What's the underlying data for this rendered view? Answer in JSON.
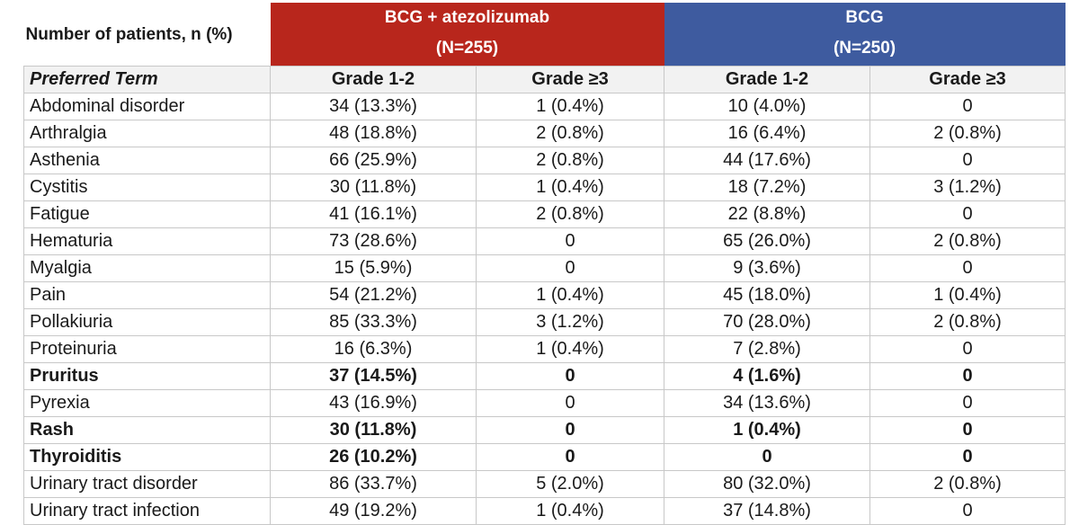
{
  "header": {
    "title": "Number of patients, n (%)",
    "arm1": {
      "name": "BCG + atezolizumab",
      "n": "(N=255)",
      "color": "#b8261c"
    },
    "arm2": {
      "name": "BCG",
      "n": "(N=250)",
      "color": "#3e5b9f"
    }
  },
  "columns": {
    "term": "Preferred Term",
    "g12_a": "Grade 1-2",
    "g3_a": "Grade ≥3",
    "g12_b": "Grade 1-2",
    "g3_b": "Grade ≥3"
  },
  "rows": [
    {
      "term": "Abdominal disorder",
      "a12": "34 (13.3%)",
      "a3": "1 (0.4%)",
      "b12": "10 (4.0%)",
      "b3": "0",
      "bold": false
    },
    {
      "term": "Arthralgia",
      "a12": "48 (18.8%)",
      "a3": "2 (0.8%)",
      "b12": "16 (6.4%)",
      "b3": "2 (0.8%)",
      "bold": false
    },
    {
      "term": "Asthenia",
      "a12": "66 (25.9%)",
      "a3": "2 (0.8%)",
      "b12": "44 (17.6%)",
      "b3": "0",
      "bold": false
    },
    {
      "term": "Cystitis",
      "a12": "30 (11.8%)",
      "a3": "1 (0.4%)",
      "b12": "18 (7.2%)",
      "b3": "3 (1.2%)",
      "bold": false
    },
    {
      "term": "Fatigue",
      "a12": "41 (16.1%)",
      "a3": "2 (0.8%)",
      "b12": "22 (8.8%)",
      "b3": "0",
      "bold": false
    },
    {
      "term": "Hematuria",
      "a12": "73 (28.6%)",
      "a3": "0",
      "b12": "65 (26.0%)",
      "b3": "2 (0.8%)",
      "bold": false
    },
    {
      "term": "Myalgia",
      "a12": "15 (5.9%)",
      "a3": "0",
      "b12": "9 (3.6%)",
      "b3": "0",
      "bold": false
    },
    {
      "term": "Pain",
      "a12": "54 (21.2%)",
      "a3": "1 (0.4%)",
      "b12": "45 (18.0%)",
      "b3": "1 (0.4%)",
      "bold": false
    },
    {
      "term": "Pollakiuria",
      "a12": "85 (33.3%)",
      "a3": "3 (1.2%)",
      "b12": "70 (28.0%)",
      "b3": "2 (0.8%)",
      "bold": false
    },
    {
      "term": "Proteinuria",
      "a12": "16 (6.3%)",
      "a3": "1 (0.4%)",
      "b12": "7 (2.8%)",
      "b3": "0",
      "bold": false
    },
    {
      "term": "Pruritus",
      "a12": "37 (14.5%)",
      "a3": "0",
      "b12": "4 (1.6%)",
      "b3": "0",
      "bold": true
    },
    {
      "term": "Pyrexia",
      "a12": "43 (16.9%)",
      "a3": "0",
      "b12": "34 (13.6%)",
      "b3": "0",
      "bold": false
    },
    {
      "term": "Rash",
      "a12": "30 (11.8%)",
      "a3": "0",
      "b12": "1 (0.4%)",
      "b3": "0",
      "bold": true
    },
    {
      "term": "Thyroiditis",
      "a12": "26 (10.2%)",
      "a3": "0",
      "b12": "0",
      "b3": "0",
      "bold": true
    },
    {
      "term": "Urinary tract disorder",
      "a12": "86 (33.7%)",
      "a3": "5 (2.0%)",
      "b12": "80 (32.0%)",
      "b3": "2 (0.8%)",
      "bold": false
    },
    {
      "term": "Urinary tract infection",
      "a12": "49 (19.2%)",
      "a3": "1 (0.4%)",
      "b12": "37 (14.8%)",
      "b3": "0",
      "bold": false
    }
  ]
}
